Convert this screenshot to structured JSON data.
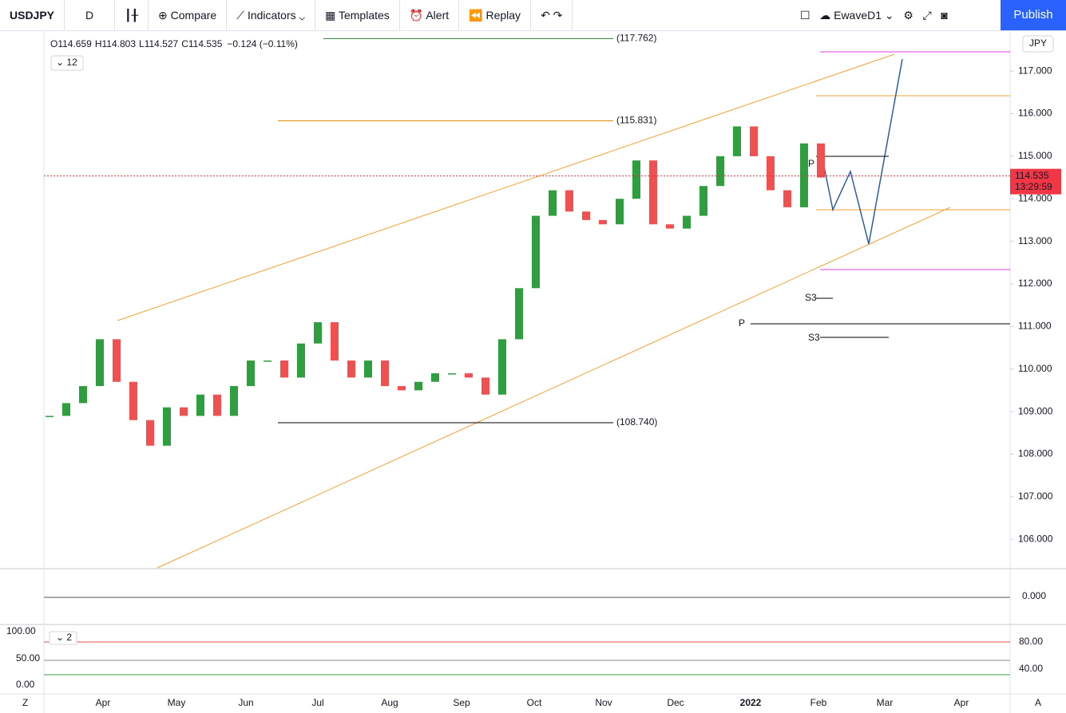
{
  "toolbar": {
    "symbol": "USDJPY",
    "interval": "D",
    "compare": "Compare",
    "indicators": "Indicators",
    "templates": "Templates",
    "alert": "Alert",
    "replay": "Replay",
    "layout": "EwaveD1",
    "publish": "Publish"
  },
  "legend": {
    "items": [
      {
        "key": "O",
        "value": "114.659"
      },
      {
        "key": "H",
        "value": "114.803"
      },
      {
        "key": "L",
        "value": "114.527"
      },
      {
        "key": "C",
        "value": "114.535"
      }
    ],
    "change": "−0.124 (−0.11%)",
    "study_count": "12"
  },
  "chart_data": {
    "type": "candlestick",
    "currency": "JPY",
    "closes": [
      108.9,
      109.2,
      109.6,
      110.7,
      109.7,
      108.8,
      108.2,
      109.1,
      108.9,
      109.4,
      108.9,
      109.6,
      110.2,
      110.2,
      109.8,
      110.6,
      111.1,
      110.2,
      109.8,
      110.2,
      109.6,
      109.5,
      109.7,
      109.9,
      109.9,
      109.8,
      109.4,
      110.7,
      111.9,
      113.6,
      114.2,
      113.7,
      113.5,
      113.4,
      114.0,
      114.9,
      113.4,
      113.3,
      113.6,
      114.3,
      115.0,
      115.7,
      115.0,
      114.2,
      113.8,
      115.3,
      114.5
    ],
    "ylim": [
      105.33,
      117.92
    ],
    "yticks": [
      {
        "value": 106,
        "label": "106.000"
      },
      {
        "value": 107,
        "label": "107.000"
      },
      {
        "value": 108,
        "label": "108.000"
      },
      {
        "value": 109,
        "label": "109.000"
      },
      {
        "value": 110,
        "label": "110.000"
      },
      {
        "value": 111,
        "label": "111.000"
      },
      {
        "value": 112,
        "label": "112.000"
      },
      {
        "value": 113,
        "label": "113.000"
      },
      {
        "value": 114,
        "label": "114.000"
      },
      {
        "value": 115,
        "label": "115.000"
      },
      {
        "value": 116,
        "label": "116.000"
      },
      {
        "value": 117,
        "label": "117.000"
      }
    ],
    "x_labels": [
      "Apr",
      "May",
      "Jun",
      "Jul",
      "Aug",
      "Sep",
      "Oct",
      "Nov",
      "Dec",
      "2022",
      "Feb",
      "Mar",
      "Apr"
    ],
    "levels": [
      {
        "value": 117.762,
        "label": "(117.762)"
      },
      {
        "value": 115.831,
        "label": "(115.831)"
      },
      {
        "value": 108.74,
        "label": "(108.740)"
      }
    ],
    "last_price": {
      "value": 114.535,
      "label": "114.535"
    },
    "countdown": "13:29:59",
    "pivots": [
      "P",
      "S3",
      "P",
      "S3"
    ]
  },
  "panes": {
    "momentum_label": "0.000",
    "stoch_left": [
      "100.00",
      "50.00",
      "0.00"
    ],
    "stoch_right": [
      "80.00",
      "40.00"
    ],
    "stoch_count": "2"
  },
  "footer": {
    "left": "Z",
    "right": "A"
  }
}
